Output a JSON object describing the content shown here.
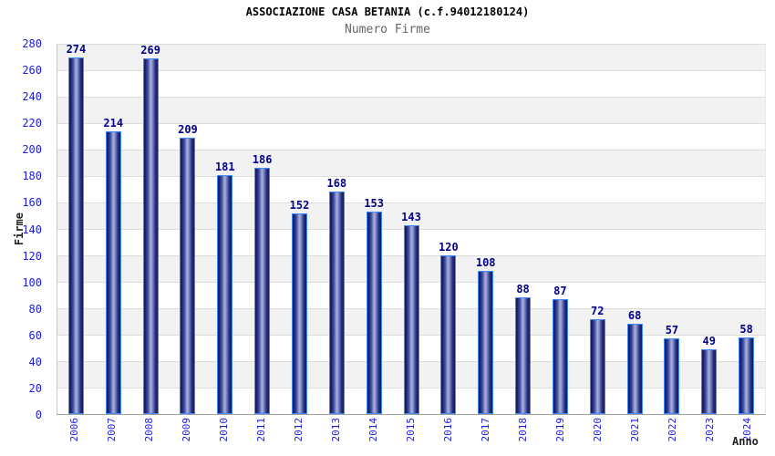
{
  "chart_data": {
    "type": "bar",
    "title": "ASSOCIAZIONE CASA BETANIA (c.f.94012180124)",
    "subtitle": "Numero Firme",
    "xlabel": "Anno",
    "ylabel": "Firme",
    "categories": [
      "2006",
      "2007",
      "2008",
      "2009",
      "2010",
      "2011",
      "2012",
      "2013",
      "2014",
      "2015",
      "2016",
      "2017",
      "2018",
      "2019",
      "2020",
      "2021",
      "2022",
      "2023",
      "2024"
    ],
    "values": [
      274,
      214,
      269,
      209,
      181,
      186,
      152,
      168,
      153,
      143,
      120,
      108,
      88,
      87,
      72,
      68,
      57,
      49,
      58
    ],
    "ylim": [
      0,
      280
    ],
    "ytick_step": 20,
    "yticks": [
      0,
      20,
      40,
      60,
      80,
      100,
      120,
      140,
      160,
      180,
      200,
      220,
      240,
      260,
      280
    ],
    "grid": true,
    "legend": false,
    "colors": {
      "bar_dark": "#12175f",
      "bar_light": "#aab3dd",
      "bar_border": "#3d8bfe",
      "value_label": "#00008b",
      "tick_label": "#1a1ae6",
      "gridline": "#dcdcdc",
      "band": "#f2f2f2",
      "title": "#000000",
      "subtitle": "#666666",
      "axis_title": "#222222",
      "background": "#ffffff"
    }
  }
}
